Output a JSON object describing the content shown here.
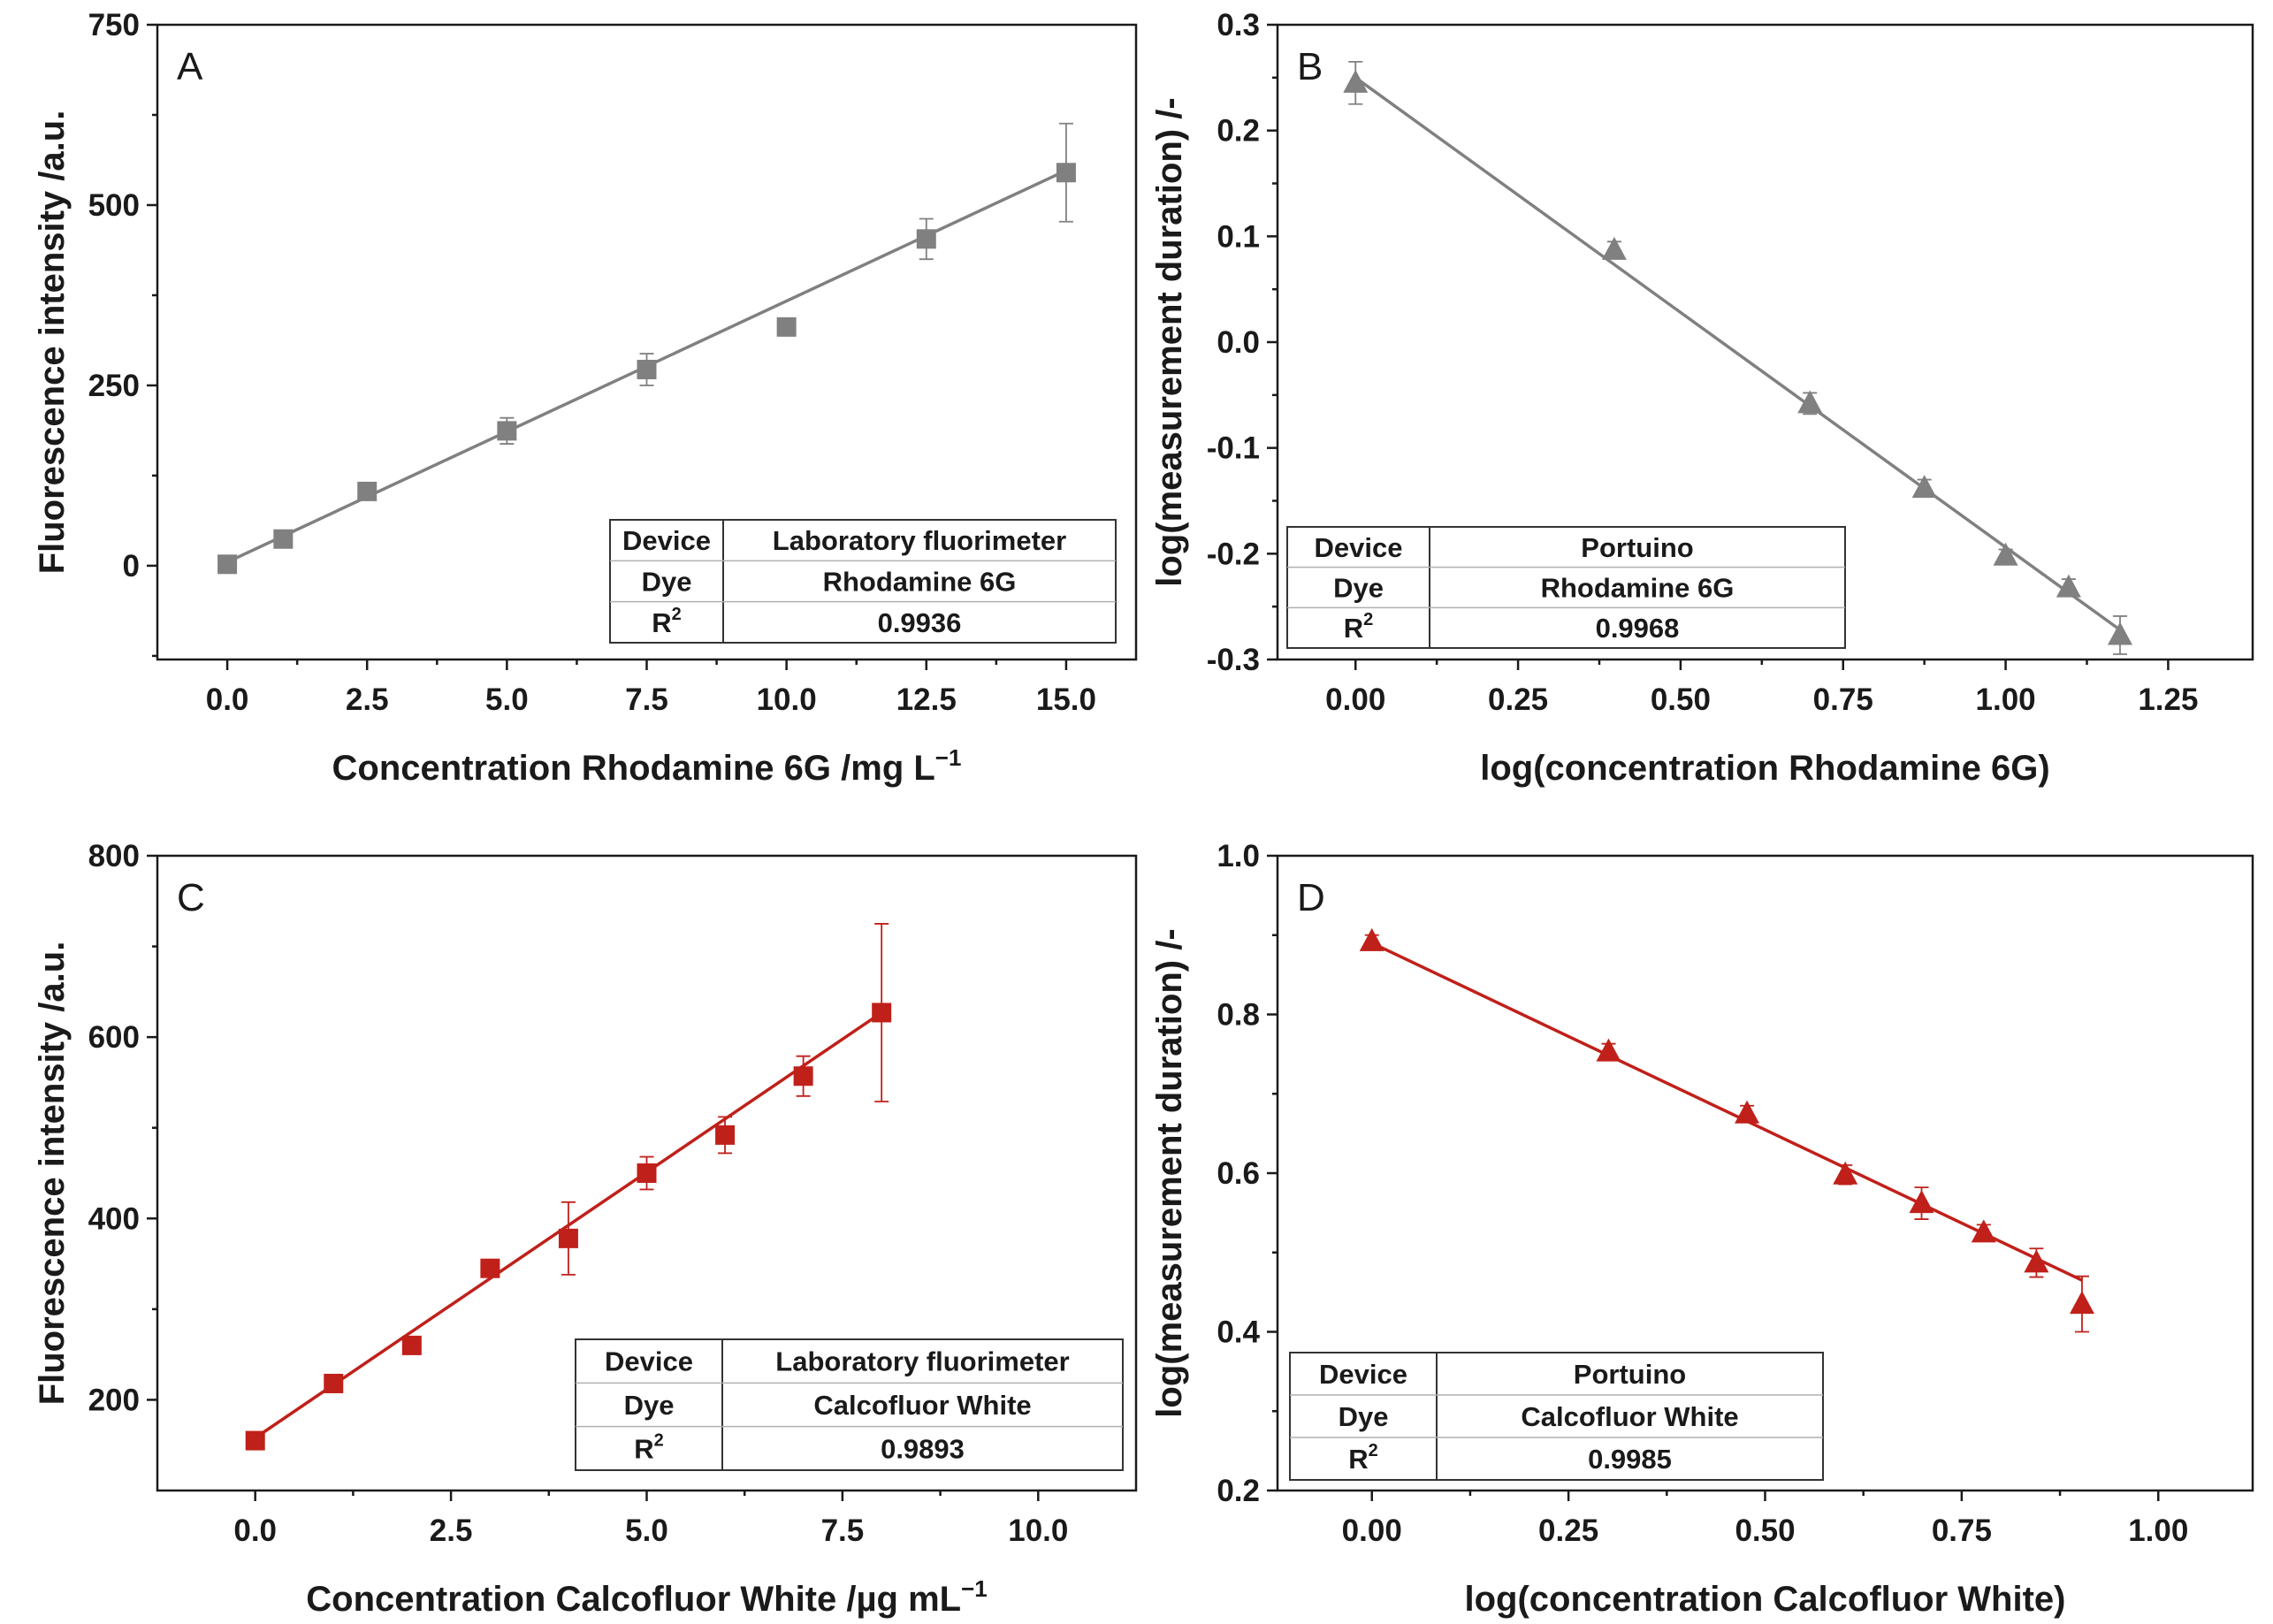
{
  "chart_data": [
    {
      "panel": "A",
      "type": "scatter",
      "xlabel": "Concentration Rhodamine 6G /mg L",
      "xlabel_sup": "−1",
      "ylabel": "Fluorescence intensity /a.u.",
      "xlim": [
        -1.25,
        16.25
      ],
      "ylim": [
        -130,
        750
      ],
      "xticks": [
        0,
        2.5,
        5,
        7.5,
        10,
        12.5,
        15
      ],
      "xtick_labels": [
        "0.0",
        "2.5",
        "5.0",
        "7.5",
        "10.0",
        "12.5",
        "15.0"
      ],
      "yticks": [
        0,
        250,
        500,
        750
      ],
      "ytick_labels": [
        "0",
        "250",
        "500",
        "750"
      ],
      "color": "#808080",
      "marker": "square",
      "x": [
        0,
        1,
        2.5,
        5,
        7.5,
        10,
        12.5,
        15
      ],
      "y": [
        2,
        37,
        103,
        187,
        272,
        331,
        453,
        545
      ],
      "err": [
        4,
        6,
        8,
        18,
        22,
        6,
        28,
        68
      ],
      "fit": {
        "x": [
          0,
          15
        ],
        "y": [
          5,
          548
        ]
      },
      "table": {
        "position": "bottom-right",
        "rows": [
          [
            "Device",
            "Laboratory fluorimeter"
          ],
          [
            "Dye",
            "Rhodamine 6G"
          ],
          [
            "R",
            "0.9936"
          ]
        ]
      }
    },
    {
      "panel": "B",
      "type": "scatter",
      "xlabel": "log(concentration Rhodamine 6G)",
      "xlabel_sup": "",
      "ylabel": "log(measurement duration) /-",
      "xlim": [
        -0.12,
        1.38
      ],
      "ylim": [
        -0.3,
        0.3
      ],
      "xticks": [
        0,
        0.25,
        0.5,
        0.75,
        1,
        1.25
      ],
      "xtick_labels": [
        "0.00",
        "0.25",
        "0.50",
        "0.75",
        "1.00",
        "1.25"
      ],
      "yticks": [
        -0.3,
        -0.2,
        -0.1,
        0,
        0.1,
        0.2,
        0.3
      ],
      "ytick_labels": [
        "-0.3",
        "-0.2",
        "-0.1",
        "0.0",
        "0.1",
        "0.2",
        "0.3"
      ],
      "color": "#808080",
      "marker": "triangle",
      "x": [
        0,
        0.398,
        0.699,
        0.875,
        1.0,
        1.097,
        1.176
      ],
      "y": [
        0.245,
        0.087,
        -0.058,
        -0.138,
        -0.202,
        -0.232,
        -0.277
      ],
      "err": [
        0.02,
        0.008,
        0.01,
        0.008,
        0.006,
        0.008,
        0.018
      ],
      "fit": {
        "x": [
          0,
          1.176
        ],
        "y": [
          0.25,
          -0.272
        ]
      },
      "table": {
        "position": "bottom-left",
        "rows": [
          [
            "Device",
            "Portuino"
          ],
          [
            "Dye",
            "Rhodamine 6G"
          ],
          [
            "R",
            "0.9968"
          ]
        ]
      }
    },
    {
      "panel": "C",
      "type": "scatter",
      "xlabel": "Concentration Calcofluor White /µg mL",
      "xlabel_sup": "−1",
      "ylabel": "Fluorescence intensity /a.u.",
      "xlim": [
        -1.25,
        11.25
      ],
      "ylim": [
        100,
        800
      ],
      "xticks": [
        0,
        2.5,
        5,
        7.5,
        10
      ],
      "xtick_labels": [
        "0.0",
        "2.5",
        "5.0",
        "7.5",
        "10.0"
      ],
      "yticks": [
        200,
        400,
        600,
        800
      ],
      "ytick_labels": [
        "200",
        "400",
        "600",
        "800"
      ],
      "color": "#c0201a",
      "marker": "square",
      "x": [
        0,
        1,
        2,
        3,
        4,
        5,
        6,
        7,
        8
      ],
      "y": [
        155,
        218,
        260,
        345,
        378,
        450,
        492,
        557,
        627
      ],
      "err": [
        4,
        6,
        6,
        6,
        40,
        18,
        20,
        22,
        98
      ],
      "fit": {
        "x": [
          0,
          8
        ],
        "y": [
          158,
          627
        ]
      },
      "table": {
        "position": "bottom-right",
        "rows": [
          [
            "Device",
            "Laboratory fluorimeter"
          ],
          [
            "Dye",
            "Calcofluor White"
          ],
          [
            "R",
            "0.9893"
          ]
        ]
      }
    },
    {
      "panel": "D",
      "type": "scatter",
      "xlabel": "log(concentration Calcofluor White)",
      "xlabel_sup": "",
      "ylabel": "log(measurement duration) /-",
      "xlim": [
        -0.12,
        1.12
      ],
      "ylim": [
        0.2,
        1.0
      ],
      "xticks": [
        0,
        0.25,
        0.5,
        0.75,
        1
      ],
      "xtick_labels": [
        "0.00",
        "0.25",
        "0.50",
        "0.75",
        "1.00"
      ],
      "yticks": [
        0.2,
        0.4,
        0.6,
        0.8,
        1.0
      ],
      "ytick_labels": [
        "0.2",
        "0.4",
        "0.6",
        "0.8",
        "1.0"
      ],
      "color": "#c0201a",
      "marker": "triangle",
      "x": [
        0,
        0.301,
        0.477,
        0.602,
        0.699,
        0.778,
        0.845,
        0.903
      ],
      "y": [
        0.892,
        0.753,
        0.675,
        0.598,
        0.562,
        0.525,
        0.487,
        0.435
      ],
      "err": [
        0.008,
        0.01,
        0.01,
        0.012,
        0.02,
        0.01,
        0.018,
        0.035
      ],
      "fit": {
        "x": [
          0,
          0.903
        ],
        "y": [
          0.89,
          0.465
        ]
      },
      "table": {
        "position": "bottom-left",
        "rows": [
          [
            "Device",
            "Portuino"
          ],
          [
            "Dye",
            "Calcofluor White"
          ],
          [
            "R",
            "0.9985"
          ]
        ]
      }
    }
  ]
}
